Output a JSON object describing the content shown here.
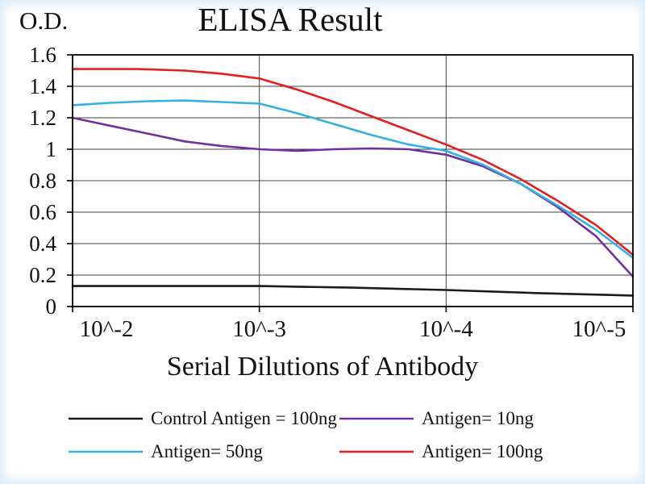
{
  "chart_data": {
    "type": "line",
    "title": "ELISA Result",
    "ylabel": "O.D.",
    "xlabel": "Serial Dilutions of Antibody",
    "x_tick_labels": [
      "10^-2",
      "10^-3",
      "10^-4",
      "10^-5"
    ],
    "x_tick_values": [
      0,
      1,
      2,
      3
    ],
    "y_ticks": [
      0,
      0.2,
      0.4,
      0.6,
      0.8,
      1,
      1.2,
      1.4,
      1.6
    ],
    "xlim": [
      0,
      3
    ],
    "ylim": [
      0,
      1.6
    ],
    "grid": true,
    "grid_color": "#404040",
    "axis_color": "#000000",
    "legend_position": "bottom",
    "series": [
      {
        "name": "Control Antigen = 100ng",
        "color": "#1a1a1a",
        "points": [
          [
            0,
            0.13
          ],
          [
            0.5,
            0.13
          ],
          [
            1.0,
            0.13
          ],
          [
            1.5,
            0.12
          ],
          [
            2.0,
            0.105
          ],
          [
            2.5,
            0.085
          ],
          [
            3.0,
            0.07
          ]
        ]
      },
      {
        "name": "Antigen= 10ng",
        "color": "#7030a0",
        "points": [
          [
            0,
            1.2
          ],
          [
            0.2,
            1.15
          ],
          [
            0.4,
            1.1
          ],
          [
            0.6,
            1.05
          ],
          [
            0.8,
            1.02
          ],
          [
            1.0,
            1.0
          ],
          [
            1.2,
            0.99
          ],
          [
            1.4,
            1.0
          ],
          [
            1.6,
            1.005
          ],
          [
            1.8,
            1.0
          ],
          [
            2.0,
            0.965
          ],
          [
            2.2,
            0.89
          ],
          [
            2.4,
            0.78
          ],
          [
            2.6,
            0.63
          ],
          [
            2.8,
            0.45
          ],
          [
            3.0,
            0.19
          ]
        ]
      },
      {
        "name": "Antigen= 50ng",
        "color": "#33b1e3",
        "points": [
          [
            0,
            1.28
          ],
          [
            0.2,
            1.295
          ],
          [
            0.4,
            1.305
          ],
          [
            0.6,
            1.31
          ],
          [
            0.8,
            1.3
          ],
          [
            1.0,
            1.29
          ],
          [
            1.2,
            1.23
          ],
          [
            1.4,
            1.16
          ],
          [
            1.6,
            1.09
          ],
          [
            1.8,
            1.03
          ],
          [
            2.0,
            0.99
          ],
          [
            2.2,
            0.9
          ],
          [
            2.4,
            0.78
          ],
          [
            2.6,
            0.64
          ],
          [
            2.8,
            0.49
          ],
          [
            3.0,
            0.31
          ]
        ]
      },
      {
        "name": "Antigen= 100ng",
        "color": "#e3201f",
        "points": [
          [
            0,
            1.51
          ],
          [
            0.35,
            1.51
          ],
          [
            0.6,
            1.5
          ],
          [
            0.8,
            1.48
          ],
          [
            1.0,
            1.45
          ],
          [
            1.2,
            1.38
          ],
          [
            1.4,
            1.3
          ],
          [
            1.6,
            1.21
          ],
          [
            1.8,
            1.12
          ],
          [
            2.0,
            1.03
          ],
          [
            2.2,
            0.93
          ],
          [
            2.4,
            0.81
          ],
          [
            2.6,
            0.67
          ],
          [
            2.8,
            0.52
          ],
          [
            3.0,
            0.33
          ]
        ]
      }
    ]
  }
}
